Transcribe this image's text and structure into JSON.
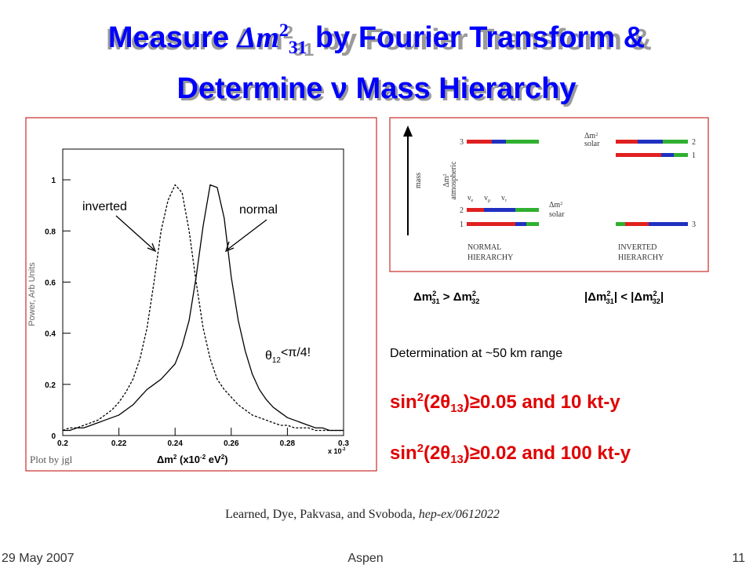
{
  "header": {
    "title_line1": [
      "Measure ",
      "Δm",
      "2",
      "31",
      " by Fourier Transform &"
    ],
    "title_line2": "Determine ν Mass Hierarchy"
  },
  "chart_data": {
    "type": "line",
    "x": [
      0.2,
      0.2025,
      0.205,
      0.2075,
      0.21,
      0.2125,
      0.215,
      0.2175,
      0.22,
      0.2225,
      0.225,
      0.2275,
      0.23,
      0.2325,
      0.235,
      0.2375,
      0.24,
      0.2425,
      0.245,
      0.2475,
      0.25,
      0.2525,
      0.255,
      0.2575,
      0.26,
      0.2625,
      0.265,
      0.2675,
      0.27,
      0.2725,
      0.275,
      0.2775,
      0.28,
      0.2825,
      0.285,
      0.2875,
      0.29,
      0.2925,
      0.295,
      0.2975,
      0.3
    ],
    "series": [
      {
        "name": "normal",
        "color": "#000000",
        "style": "solid",
        "values": [
          0.02,
          0.02,
          0.03,
          0.03,
          0.04,
          0.05,
          0.06,
          0.07,
          0.08,
          0.1,
          0.12,
          0.15,
          0.18,
          0.2,
          0.22,
          0.25,
          0.28,
          0.35,
          0.45,
          0.62,
          0.82,
          0.98,
          0.97,
          0.85,
          0.62,
          0.45,
          0.33,
          0.24,
          0.18,
          0.14,
          0.11,
          0.09,
          0.07,
          0.06,
          0.05,
          0.04,
          0.03,
          0.03,
          0.02,
          0.02,
          0.02
        ]
      },
      {
        "name": "inverted",
        "color": "#000000",
        "style": "dashed",
        "values": [
          0.02,
          0.03,
          0.03,
          0.04,
          0.05,
          0.06,
          0.08,
          0.1,
          0.13,
          0.17,
          0.22,
          0.3,
          0.42,
          0.6,
          0.8,
          0.92,
          0.98,
          0.95,
          0.8,
          0.6,
          0.42,
          0.3,
          0.22,
          0.18,
          0.15,
          0.12,
          0.1,
          0.08,
          0.07,
          0.06,
          0.05,
          0.04,
          0.04,
          0.03,
          0.03,
          0.03,
          0.02,
          0.02,
          0.02,
          0.02,
          0.02
        ]
      }
    ],
    "xlim": [
      0.2,
      0.3
    ],
    "xticks": [
      0.2,
      0.22,
      0.24,
      0.26,
      0.28,
      0.3
    ],
    "ylim": [
      0,
      1.12
    ],
    "yticks": [
      0,
      0.2,
      0.4,
      0.6,
      0.8,
      1
    ],
    "y_label": "Power, Arb Units",
    "x_label": [
      "Δm",
      "2",
      " (x10",
      "-2",
      " eV",
      "2",
      ")"
    ],
    "x_multiplier": [
      "x 10",
      "-2"
    ],
    "annotation_theta": [
      "θ",
      "12",
      "<π/4!"
    ],
    "credit": "Plot by jgl"
  },
  "diagram": {
    "mass": "mass",
    "atmospheric": [
      "Δm",
      "2",
      "atmospheric"
    ],
    "solar_normal": [
      "Δm",
      "2",
      "solar"
    ],
    "solar_inverted": [
      "Δm",
      "2",
      "solar"
    ],
    "levels_normal": [
      "3",
      "2",
      "1"
    ],
    "levels_inverted": [
      "2",
      "1",
      "3"
    ],
    "flavors": [
      "ν",
      "e",
      "ν",
      "μ",
      "ν",
      "τ"
    ],
    "normal": [
      "NORMAL",
      "HIERARCHY"
    ],
    "inverted": [
      "INVERTED",
      "HIERARCHY"
    ]
  },
  "relations": {
    "normal": [
      "Δm",
      "2",
      "31",
      " > Δm",
      "2",
      "32"
    ],
    "inverted": [
      "|Δm",
      "2",
      "31",
      "| < |Δm",
      "2",
      "32",
      "|"
    ]
  },
  "body": {
    "determination": "Determination at ~50 km range",
    "line1": [
      "sin",
      "2",
      "(2θ",
      "13",
      ")≥0.05 and 10 kt-y"
    ],
    "line2": [
      "sin",
      "2",
      "(2θ",
      "13",
      ")≥0.02 and 100 kt-y"
    ]
  },
  "citation": [
    "Learned, Dye, Pakvasa, and Svoboda, ",
    "hep-ex/0612022"
  ],
  "footer": {
    "date": "29 May 2007",
    "place": "Aspen",
    "page": "11"
  }
}
